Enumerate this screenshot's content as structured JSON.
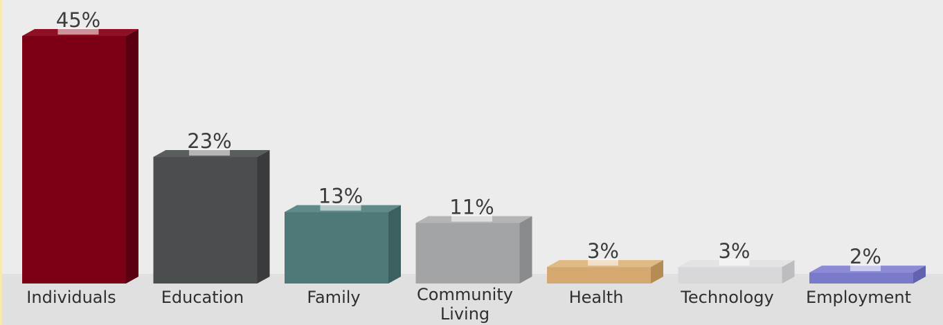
{
  "chart_data": {
    "type": "bar",
    "categories": [
      "Individuals",
      "Education",
      "Family",
      "Community Living",
      "Health",
      "Technology",
      "Employment"
    ],
    "values": [
      45,
      23,
      13,
      11,
      3,
      3,
      2
    ],
    "value_labels": [
      "45%",
      "23%",
      "13%",
      "11%",
      "3%",
      "3%",
      "2%"
    ],
    "unit": "%",
    "ylim": [
      0,
      45
    ],
    "grid": false,
    "legend": "none",
    "style": "3d-bars",
    "colors": [
      {
        "front": "#7b0016",
        "side": "#5a0010",
        "top": "#8f1024"
      },
      {
        "front": "#4b4e4f",
        "side": "#393b3c",
        "top": "#5a5d5e"
      },
      {
        "front": "#4f7878",
        "side": "#3c5f5f",
        "top": "#5f8a8a"
      },
      {
        "front": "#a3a4a6",
        "side": "#8a8b8d",
        "top": "#b4b5b7"
      },
      {
        "front": "#d4a86e",
        "side": "#b68c55",
        "top": "#e0b985"
      },
      {
        "front": "#d8d8da",
        "side": "#bdbdbf",
        "top": "#e3e3e5"
      },
      {
        "front": "#7a7acb",
        "side": "#6262b0",
        "top": "#8c8cd6"
      }
    ]
  },
  "colors": {
    "background": "#ececec",
    "floor": "#e0e0e0",
    "left_accent": "#f7e9b0",
    "label_plate": "#ffffff"
  }
}
